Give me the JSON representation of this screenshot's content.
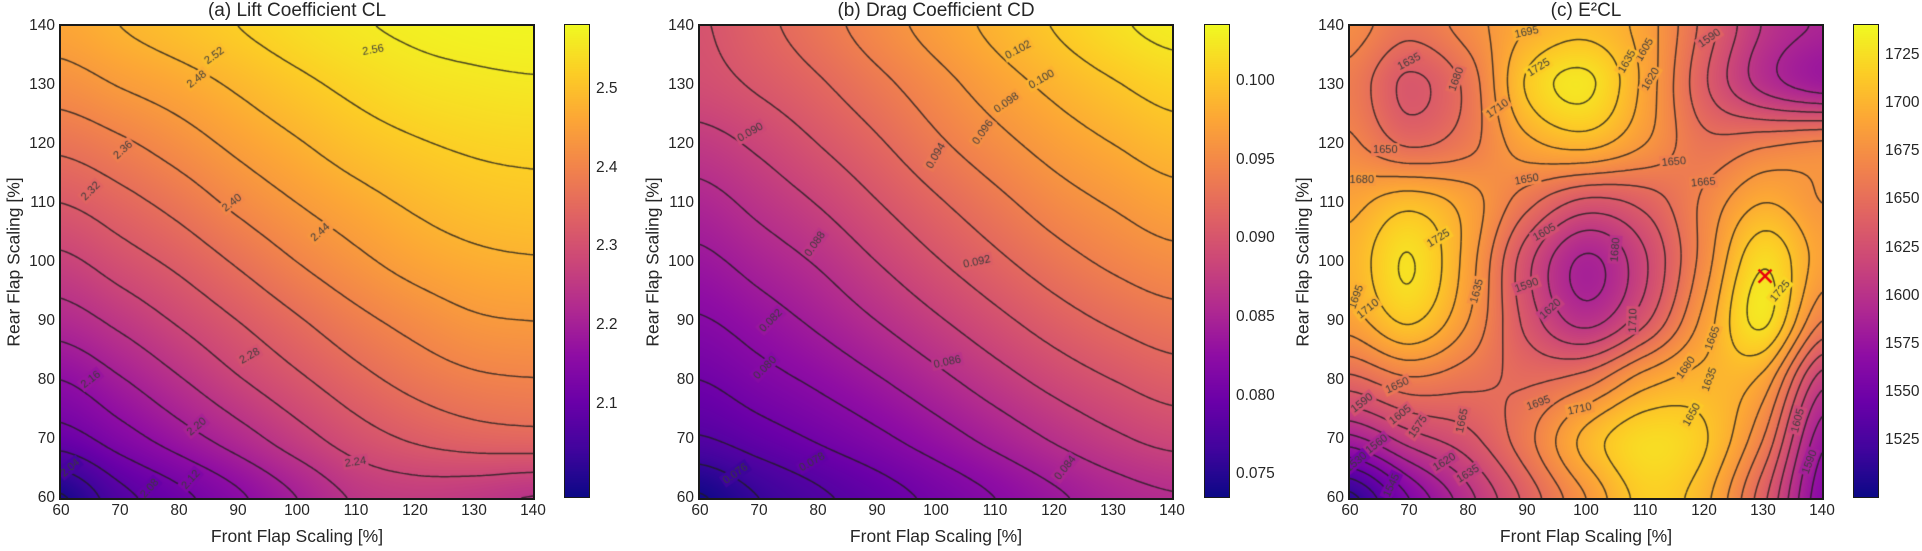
{
  "figure": {
    "background": "#ffffff",
    "text_color": "#262626",
    "spine_color": "#1a1a1a",
    "contour_line_color": "#232323",
    "contour_label_color": "#3b3b3b",
    "marker_color": "#e8000b",
    "colormap": "plasma",
    "colormap_stops": [
      "#0d0887",
      "#41049d",
      "#6a00a8",
      "#8f0da4",
      "#b12a90",
      "#cc4778",
      "#e16462",
      "#f2844b",
      "#fca636",
      "#fcce25",
      "#f0f921"
    ]
  },
  "chart_data": [
    {
      "id": "a",
      "type": "contour",
      "title": "(a) Lift Coefficient CL",
      "xlabel": "Front Flap Scaling [%]",
      "ylabel": "Rear Flap Scaling [%]",
      "xlim": [
        60,
        140
      ],
      "ylim": [
        60,
        140
      ],
      "xticks": [
        60,
        70,
        80,
        90,
        100,
        110,
        120,
        130,
        140
      ],
      "yticks": [
        60,
        70,
        80,
        90,
        100,
        110,
        120,
        130,
        140
      ],
      "zmin": 1.98,
      "zmax": 2.58,
      "levels": [
        2.0,
        2.04,
        2.08,
        2.12,
        2.16,
        2.2,
        2.24,
        2.28,
        2.32,
        2.36,
        2.4,
        2.44,
        2.48,
        2.52,
        2.56
      ],
      "colorbar_tick_values": [
        2.5,
        2.4,
        2.3,
        2.2,
        2.1
      ],
      "colorbar_tick_labels": [
        "2.5",
        "2.4",
        "2.3",
        "2.2",
        "2.1"
      ],
      "grid_x": [
        60,
        70,
        80,
        90,
        100,
        110,
        120,
        130,
        140
      ],
      "grid_y": [
        60,
        70,
        80,
        90,
        100,
        110,
        120,
        130,
        140
      ],
      "grid_values": [
        [
          1.995,
          2.065,
          2.108,
          2.152,
          2.2,
          2.245,
          2.258,
          2.252,
          2.238
        ],
        [
          2.1,
          2.14,
          2.18,
          2.22,
          2.262,
          2.3,
          2.325,
          2.34,
          2.345
        ],
        [
          2.16,
          2.196,
          2.236,
          2.276,
          2.312,
          2.346,
          2.374,
          2.392,
          2.398
        ],
        [
          2.22,
          2.25,
          2.285,
          2.32,
          2.355,
          2.388,
          2.414,
          2.434,
          2.44
        ],
        [
          2.27,
          2.3,
          2.33,
          2.365,
          2.4,
          2.43,
          2.455,
          2.47,
          2.476
        ],
        [
          2.32,
          2.345,
          2.375,
          2.41,
          2.44,
          2.465,
          2.486,
          2.5,
          2.506
        ],
        [
          2.37,
          2.392,
          2.42,
          2.45,
          2.476,
          2.5,
          2.516,
          2.526,
          2.53
        ],
        [
          2.42,
          2.442,
          2.462,
          2.486,
          2.51,
          2.53,
          2.545,
          2.552,
          2.556
        ],
        [
          2.458,
          2.48,
          2.5,
          2.52,
          2.54,
          2.556,
          2.566,
          2.572,
          2.574
        ]
      ],
      "contour_labels": [
        {
          "t": "2.56",
          "x": 113,
          "y": 136,
          "r": -10
        },
        {
          "t": "2.52",
          "x": 86,
          "y": 135,
          "r": -36
        },
        {
          "t": "2.48",
          "x": 83,
          "y": 131,
          "r": -38
        },
        {
          "t": "2.44",
          "x": 104,
          "y": 105,
          "r": -42
        },
        {
          "t": "2.40",
          "x": 89,
          "y": 110,
          "r": -38
        },
        {
          "t": "2.36",
          "x": 70.5,
          "y": 119,
          "r": -42
        },
        {
          "t": "2.32",
          "x": 65,
          "y": 112,
          "r": -45
        },
        {
          "t": "2.28",
          "x": 92,
          "y": 84,
          "r": -30
        },
        {
          "t": "2.24",
          "x": 110,
          "y": 66,
          "r": -8
        },
        {
          "t": "2.20",
          "x": 83,
          "y": 72,
          "r": -40
        },
        {
          "t": "2.16",
          "x": 65,
          "y": 80,
          "r": -38
        },
        {
          "t": "2.12",
          "x": 82,
          "y": 63,
          "r": -48
        },
        {
          "t": "2.08",
          "x": 75,
          "y": 61.5,
          "r": -48
        },
        {
          "t": "2.04",
          "x": 61.5,
          "y": 65,
          "r": -40
        }
      ],
      "marker": null
    },
    {
      "id": "b",
      "type": "contour",
      "title": "(b) Drag Coefficient CD",
      "xlabel": "Front Flap Scaling [%]",
      "ylabel": "Rear Flap Scaling [%]",
      "xlim": [
        60,
        140
      ],
      "ylim": [
        60,
        140
      ],
      "xticks": [
        60,
        70,
        80,
        90,
        100,
        110,
        120,
        130,
        140
      ],
      "yticks": [
        60,
        70,
        80,
        90,
        100,
        110,
        120,
        130,
        140
      ],
      "zmin": 0.0735,
      "zmax": 0.1035,
      "levels": [
        0.074,
        0.076,
        0.078,
        0.08,
        0.082,
        0.084,
        0.086,
        0.088,
        0.09,
        0.092,
        0.094,
        0.096,
        0.098,
        0.1,
        0.102
      ],
      "colorbar_tick_values": [
        0.1,
        0.095,
        0.09,
        0.085,
        0.08,
        0.075
      ],
      "colorbar_tick_labels": [
        "0.100",
        "0.095",
        "0.090",
        "0.085",
        "0.080",
        "0.075"
      ],
      "grid_x": [
        60,
        70,
        80,
        90,
        100,
        110,
        120,
        130,
        140
      ],
      "grid_y": [
        60,
        70,
        80,
        90,
        100,
        110,
        120,
        130,
        140
      ],
      "grid_values": [
        [
          0.0738,
          0.076,
          0.0776,
          0.079,
          0.0805,
          0.082,
          0.0836,
          0.085,
          0.0858
        ],
        [
          0.0778,
          0.079,
          0.0802,
          0.0815,
          0.083,
          0.0846,
          0.0862,
          0.0876,
          0.0886
        ],
        [
          0.08,
          0.0812,
          0.0824,
          0.0838,
          0.0854,
          0.0871,
          0.0887,
          0.09,
          0.091
        ],
        [
          0.0818,
          0.083,
          0.0844,
          0.086,
          0.0877,
          0.0894,
          0.091,
          0.0923,
          0.0932
        ],
        [
          0.0835,
          0.0848,
          0.0862,
          0.088,
          0.0898,
          0.0915,
          0.0931,
          0.0944,
          0.0953
        ],
        [
          0.0852,
          0.0866,
          0.0881,
          0.0899,
          0.0917,
          0.0934,
          0.095,
          0.0962,
          0.0972
        ],
        [
          0.0872,
          0.0884,
          0.09,
          0.0917,
          0.0936,
          0.0953,
          0.0968,
          0.098,
          0.099
        ],
        [
          0.0892,
          0.0903,
          0.0917,
          0.0934,
          0.0952,
          0.097,
          0.0985,
          0.0998,
          0.1008
        ],
        [
          0.0898,
          0.0914,
          0.0931,
          0.095,
          0.0968,
          0.0985,
          0.1001,
          0.1016,
          0.1026
        ]
      ],
      "contour_labels": [
        {
          "t": "0.102",
          "x": 114,
          "y": 136,
          "r": -28
        },
        {
          "t": "0.100",
          "x": 118,
          "y": 131,
          "r": -30
        },
        {
          "t": "0.098",
          "x": 112,
          "y": 127,
          "r": -35
        },
        {
          "t": "0.096",
          "x": 108,
          "y": 122,
          "r": -55
        },
        {
          "t": "0.094",
          "x": 100,
          "y": 118,
          "r": -60
        },
        {
          "t": "0.090",
          "x": 68.5,
          "y": 122,
          "r": -30
        },
        {
          "t": "0.092",
          "x": 107,
          "y": 100,
          "r": -12
        },
        {
          "t": "0.088",
          "x": 79.5,
          "y": 103,
          "r": -55
        },
        {
          "t": "0.086",
          "x": 102,
          "y": 83,
          "r": -12
        },
        {
          "t": "0.082",
          "x": 72,
          "y": 90,
          "r": -45
        },
        {
          "t": "0.080",
          "x": 71,
          "y": 82,
          "r": -45
        },
        {
          "t": "0.078",
          "x": 79,
          "y": 66,
          "r": -30
        },
        {
          "t": "0.076",
          "x": 66,
          "y": 64,
          "r": -35
        },
        {
          "t": "0.084",
          "x": 122,
          "y": 65,
          "r": -52
        }
      ],
      "marker": null
    },
    {
      "id": "c",
      "type": "contour",
      "title": "(c) E²CL",
      "xlabel": "Front Flap Scaling [%]",
      "ylabel": "Rear Flap Scaling [%]",
      "xlim": [
        60,
        140
      ],
      "ylim": [
        60,
        140
      ],
      "xticks": [
        60,
        70,
        80,
        90,
        100,
        110,
        120,
        130,
        140
      ],
      "yticks": [
        60,
        70,
        80,
        90,
        100,
        110,
        120,
        130,
        140
      ],
      "zmin": 1495,
      "zmax": 1740,
      "levels": [
        1515,
        1530,
        1545,
        1560,
        1575,
        1590,
        1605,
        1620,
        1635,
        1650,
        1665,
        1680,
        1695,
        1710,
        1725
      ],
      "colorbar_tick_values": [
        1725,
        1700,
        1675,
        1650,
        1625,
        1600,
        1575,
        1550,
        1525
      ],
      "colorbar_tick_labels": [
        "1725",
        "1700",
        "1675",
        "1650",
        "1625",
        "1600",
        "1575",
        "1550",
        "1525"
      ],
      "grid_x": [
        60,
        70,
        80,
        90,
        100,
        110,
        120,
        130,
        140
      ],
      "grid_y": [
        60,
        70,
        80,
        90,
        100,
        110,
        120,
        130,
        140
      ],
      "grid_values": [
        [
          1510,
          1560,
          1600,
          1640,
          1680,
          1715,
          1700,
          1640,
          1565
        ],
        [
          1585,
          1612,
          1630,
          1660,
          1700,
          1722,
          1712,
          1665,
          1580
        ],
        [
          1645,
          1662,
          1655,
          1648,
          1658,
          1688,
          1700,
          1690,
          1612
        ],
        [
          1688,
          1712,
          1680,
          1630,
          1600,
          1632,
          1685,
          1728,
          1665
        ],
        [
          1700,
          1726,
          1688,
          1625,
          1587,
          1618,
          1672,
          1723,
          1688
        ],
        [
          1690,
          1705,
          1688,
          1655,
          1630,
          1640,
          1668,
          1695,
          1680
        ],
        [
          1668,
          1648,
          1660,
          1690,
          1700,
          1680,
          1655,
          1662,
          1668
        ],
        [
          1660,
          1632,
          1655,
          1712,
          1728,
          1690,
          1638,
          1600,
          1582
        ],
        [
          1672,
          1655,
          1672,
          1695,
          1705,
          1688,
          1645,
          1604,
          1588
        ]
      ],
      "contour_labels": [
        {
          "t": "1695",
          "x": 90,
          "y": 139,
          "r": -12
        },
        {
          "t": "1725",
          "x": 92,
          "y": 133,
          "r": -32
        },
        {
          "t": "1710",
          "x": 85,
          "y": 126,
          "r": -35
        },
        {
          "t": "1635",
          "x": 70,
          "y": 134,
          "r": -28
        },
        {
          "t": "1680",
          "x": 78,
          "y": 131,
          "r": -70
        },
        {
          "t": "1650",
          "x": 66,
          "y": 119,
          "r": 0
        },
        {
          "t": "1680",
          "x": 62,
          "y": 114,
          "r": 0
        },
        {
          "t": "1650",
          "x": 115,
          "y": 117,
          "r": -5
        },
        {
          "t": "1665",
          "x": 120,
          "y": 113.5,
          "r": -5
        },
        {
          "t": "1605",
          "x": 110,
          "y": 136,
          "r": -60
        },
        {
          "t": "1635",
          "x": 107,
          "y": 134,
          "r": -60
        },
        {
          "t": "1620",
          "x": 111,
          "y": 131,
          "r": -60
        },
        {
          "t": "1590",
          "x": 121,
          "y": 138,
          "r": -35
        },
        {
          "t": "1650",
          "x": 90,
          "y": 114,
          "r": -10
        },
        {
          "t": "1605",
          "x": 93,
          "y": 105,
          "r": -30
        },
        {
          "t": "1680",
          "x": 105,
          "y": 102,
          "r": -85
        },
        {
          "t": "1725",
          "x": 75,
          "y": 104,
          "r": -32
        },
        {
          "t": "1590",
          "x": 90,
          "y": 96,
          "r": -20
        },
        {
          "t": "1635",
          "x": 81.5,
          "y": 95,
          "r": -75
        },
        {
          "t": "1620",
          "x": 94,
          "y": 92,
          "r": -42
        },
        {
          "t": "1710",
          "x": 108,
          "y": 90,
          "r": -88
        },
        {
          "t": "1725",
          "x": 133,
          "y": 95,
          "r": -50
        },
        {
          "t": "1710",
          "x": 63,
          "y": 92,
          "r": -38
        },
        {
          "t": "1695",
          "x": 61,
          "y": 94,
          "r": -70
        },
        {
          "t": "1650",
          "x": 68,
          "y": 79,
          "r": -25
        },
        {
          "t": "1665",
          "x": 79,
          "y": 73,
          "r": -78
        },
        {
          "t": "1590",
          "x": 62,
          "y": 76,
          "r": -38
        },
        {
          "t": "1605",
          "x": 68.5,
          "y": 74,
          "r": -38
        },
        {
          "t": "1560",
          "x": 64.5,
          "y": 69,
          "r": -38
        },
        {
          "t": "1530",
          "x": 61,
          "y": 66,
          "r": -40
        },
        {
          "t": "1545",
          "x": 67,
          "y": 62,
          "r": -65
        },
        {
          "t": "1575",
          "x": 71.5,
          "y": 72,
          "r": -55
        },
        {
          "t": "1620",
          "x": 76,
          "y": 66,
          "r": -32
        },
        {
          "t": "1635",
          "x": 80,
          "y": 64,
          "r": -32
        },
        {
          "t": "1695",
          "x": 92,
          "y": 76,
          "r": -20
        },
        {
          "t": "1710",
          "x": 99,
          "y": 75,
          "r": -12
        },
        {
          "t": "1680",
          "x": 117,
          "y": 82,
          "r": -55
        },
        {
          "t": "1650",
          "x": 118,
          "y": 74,
          "r": -60
        },
        {
          "t": "1635",
          "x": 121,
          "y": 80,
          "r": -70
        },
        {
          "t": "1665",
          "x": 121.5,
          "y": 87,
          "r": -70
        },
        {
          "t": "1605",
          "x": 136,
          "y": 73,
          "r": -75
        },
        {
          "t": "1590",
          "x": 138,
          "y": 66,
          "r": -70
        }
      ],
      "marker": {
        "symbol": "x",
        "x": 130.5,
        "y": 97.5,
        "color": "#e8000b",
        "size": 13
      }
    }
  ]
}
